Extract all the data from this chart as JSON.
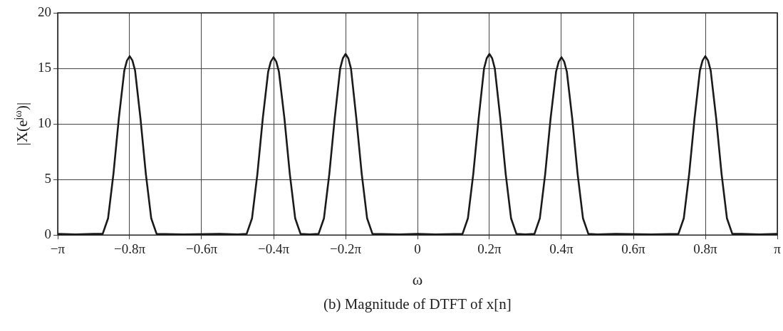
{
  "chart_data": {
    "type": "line",
    "title": "(b) Magnitude of DTFT of x[n]",
    "xlabel": "ω",
    "ylabel": "|X(e$^{jω}$)|",
    "x": [
      -3.1416,
      -2.985,
      -2.827,
      -2.749,
      -2.702,
      -2.655,
      -2.608,
      -2.56,
      -2.537,
      -2.513,
      -2.489,
      -2.466,
      -2.419,
      -2.372,
      -2.325,
      -2.278,
      -2.042,
      -1.728,
      -1.571,
      -1.492,
      -1.445,
      -1.398,
      -1.351,
      -1.304,
      -1.281,
      -1.257,
      -1.233,
      -1.21,
      -1.162,
      -1.115,
      -1.068,
      -1.021,
      -0.942,
      -0.864,
      -0.817,
      -0.77,
      -0.723,
      -0.675,
      -0.652,
      -0.628,
      -0.604,
      -0.581,
      -0.534,
      -0.487,
      -0.44,
      -0.393,
      -0.157,
      0,
      0.157,
      0.393,
      0.44,
      0.487,
      0.534,
      0.581,
      0.604,
      0.628,
      0.652,
      0.675,
      0.723,
      0.77,
      0.817,
      0.864,
      0.942,
      1.021,
      1.068,
      1.115,
      1.162,
      1.21,
      1.233,
      1.257,
      1.281,
      1.304,
      1.351,
      1.398,
      1.445,
      1.492,
      1.571,
      1.728,
      2.042,
      2.278,
      2.325,
      2.372,
      2.419,
      2.466,
      2.489,
      2.513,
      2.537,
      2.56,
      2.608,
      2.655,
      2.702,
      2.749,
      2.827,
      2.985,
      3.1416
    ],
    "series": [
      {
        "color": "#1a1a1a",
        "values": [
          0.1,
          0.05,
          0.1,
          0.1,
          1.5,
          5.5,
          10.5,
          14.8,
          15.7,
          16.1,
          15.7,
          14.8,
          10.5,
          5.5,
          1.5,
          0.1,
          0.05,
          0.1,
          0.05,
          0.1,
          1.5,
          5.5,
          10.5,
          14.7,
          15.6,
          16.0,
          15.6,
          14.7,
          10.5,
          5.5,
          1.5,
          0.1,
          0.05,
          0.1,
          1.5,
          5.5,
          10.5,
          15,
          15.9,
          16.3,
          15.9,
          15,
          10.5,
          5.5,
          1.5,
          0.1,
          0.05,
          0.1,
          0.05,
          0.1,
          1.5,
          5.5,
          10.5,
          15,
          15.9,
          16.3,
          15.9,
          15,
          10.5,
          5.5,
          1.5,
          0.1,
          0.05,
          0.1,
          1.5,
          5.5,
          10.5,
          14.7,
          15.6,
          16.0,
          15.6,
          14.7,
          10.5,
          5.5,
          1.5,
          0.1,
          0.05,
          0.1,
          0.05,
          0.1,
          1.5,
          5.5,
          10.5,
          14.8,
          15.7,
          16.1,
          15.7,
          14.8,
          10.5,
          5.5,
          1.5,
          0.1,
          0.1,
          0.05,
          0.1
        ]
      }
    ],
    "xlim": [
      -3.1416,
      3.1416
    ],
    "xticks": [
      {
        "value": -3.1416,
        "label": "−π"
      },
      {
        "value": -2.5133,
        "label": "−0.8π"
      },
      {
        "value": -1.885,
        "label": "−0.6π"
      },
      {
        "value": -1.2566,
        "label": "−0.4π"
      },
      {
        "value": -0.6283,
        "label": "−0.2π"
      },
      0,
      {
        "value": 0.6283,
        "label": "0.2π"
      },
      {
        "value": 1.2566,
        "label": "0.4π"
      },
      {
        "value": 1.885,
        "label": "0.6π"
      },
      {
        "value": 2.5133,
        "label": "0.8π"
      },
      {
        "value": 3.1416,
        "label": "π"
      }
    ],
    "ylim": [
      0,
      20
    ],
    "yticks": [
      0,
      5,
      10,
      15,
      20
    ],
    "grid": true,
    "legend": false,
    "marker": "none",
    "line_style": "solid"
  }
}
